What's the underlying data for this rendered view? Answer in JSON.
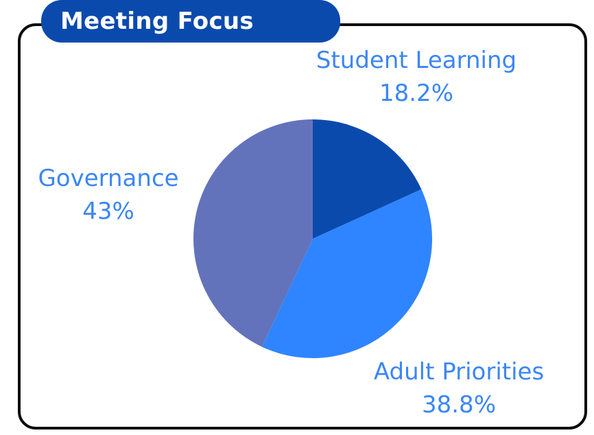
{
  "title": "Meeting Focus",
  "chart_data": {
    "type": "pie",
    "title": "Meeting Focus",
    "slices": [
      {
        "label": "Student Learning",
        "value": 18.2,
        "display": "18.2%",
        "color": "#0b4aad"
      },
      {
        "label": "Adult Priorities",
        "value": 38.8,
        "display": "38.8%",
        "color": "#2f85ff"
      },
      {
        "label": "Governance",
        "value": 43,
        "display": "43%",
        "color": "#6373bb"
      }
    ],
    "start_angle": "top",
    "direction": "clockwise"
  },
  "colors": {
    "title_background": "#0b4aad",
    "label_text": "#3b86f5",
    "card_border": "#0b0b0b"
  }
}
